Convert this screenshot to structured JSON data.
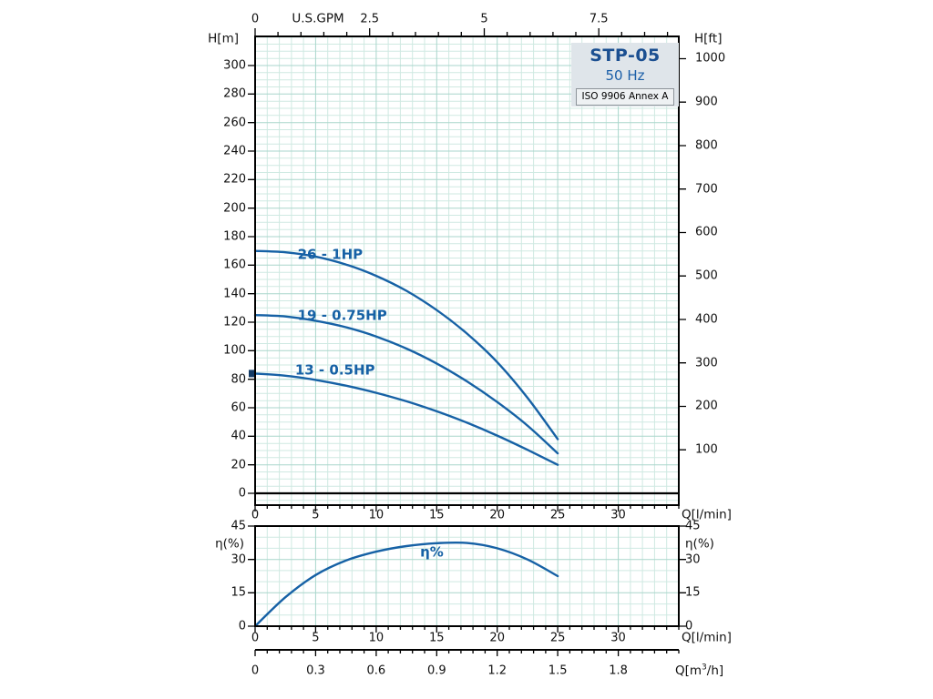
{
  "header": {
    "model": "STP-05",
    "frequency": "50 Hz",
    "standard": "ISO 9906 Annex A"
  },
  "axis_titles": {
    "head_metric": "H[m]",
    "head_imperial": "H[ft]",
    "flow_usgpm": "U.S.GPM",
    "flow_lmin_top": "Q[l/min]",
    "flow_lmin_bottom": "Q[l/min]",
    "flow_m3h_pre": "Q[m",
    "flow_m3h_sup": "3",
    "flow_m3h_post": "/h]",
    "eff_left": "η(%)",
    "eff_right": "η(%)"
  },
  "colors": {
    "curve": "#1661a5",
    "curve_label": "#1661a5",
    "grid_minor": "#cfe9e2",
    "grid_major": "#a9d6cc",
    "frame": "#000000",
    "marker": "#123b66"
  },
  "chart_data": [
    {
      "type": "line",
      "title": "STP-05 50 Hz pump head curves",
      "xlabel": "Q[l/min]",
      "xlabel_top": "U.S.GPM",
      "ylabel": "H[m]",
      "ylabel_right": "H[ft]",
      "xlim": [
        0,
        35
      ],
      "ylim": [
        0,
        320
      ],
      "grid": true,
      "x_ticks_lmin": [
        0,
        5,
        10,
        15,
        20,
        25,
        30
      ],
      "x_ticks_usgpm": [
        0,
        2.5,
        5,
        7.5
      ],
      "y_ticks_m": [
        0,
        20,
        40,
        60,
        80,
        100,
        120,
        140,
        160,
        180,
        200,
        220,
        240,
        260,
        280,
        300
      ],
      "y_ticks_ft": [
        100,
        200,
        300,
        400,
        500,
        600,
        700,
        800,
        900,
        1000
      ],
      "series": [
        {
          "name": "26 - 1HP",
          "x": [
            0,
            2.5,
            5,
            7.5,
            10,
            12.5,
            15,
            17.5,
            20,
            22.5,
            25
          ],
          "y": [
            170,
            169,
            166,
            160.5,
            152.5,
            142,
            128.5,
            112,
            92,
            67,
            38
          ],
          "label_at": [
            6.2,
            167
          ]
        },
        {
          "name": "19 - 0.75HP",
          "x": [
            0,
            2.5,
            5,
            7.5,
            10,
            12.5,
            15,
            17.5,
            20,
            22.5,
            25
          ],
          "y": [
            125,
            124,
            121,
            116.5,
            110,
            101.5,
            91,
            78.5,
            64,
            47.5,
            28
          ],
          "label_at": [
            7.2,
            124.5
          ]
        },
        {
          "name": "13 - 0.5HP",
          "x": [
            0,
            2.5,
            5,
            7.5,
            10,
            12.5,
            15,
            17.5,
            20,
            22.5,
            25
          ],
          "y": [
            84,
            82.5,
            79.5,
            75.5,
            70.5,
            64.5,
            57.5,
            49.5,
            40.5,
            30.5,
            20
          ],
          "label_at": [
            6.6,
            86
          ],
          "start_marker": true
        }
      ]
    },
    {
      "type": "line",
      "title": "Efficiency curve",
      "xlabel": "Q[l/min]",
      "xlabel_secondary": "Q[m3/h]",
      "ylabel": "η(%)",
      "xlim": [
        0,
        35
      ],
      "ylim": [
        0,
        45
      ],
      "grid": true,
      "x_ticks_lmin": [
        0,
        5,
        10,
        15,
        20,
        25,
        30
      ],
      "x_ticks_m3h": [
        0,
        0.3,
        0.6,
        0.9,
        1.2,
        1.5,
        1.8
      ],
      "y_ticks": [
        0,
        15,
        30,
        45
      ],
      "series": [
        {
          "name": "η%",
          "x": [
            0,
            2.5,
            5,
            7.5,
            10,
            12.5,
            15,
            17.5,
            20,
            22.5,
            25
          ],
          "y": [
            0,
            13,
            23,
            29.5,
            33.5,
            36,
            37.3,
            37.4,
            35,
            30,
            22.5
          ],
          "label_at": [
            14.6,
            33
          ]
        }
      ]
    }
  ]
}
